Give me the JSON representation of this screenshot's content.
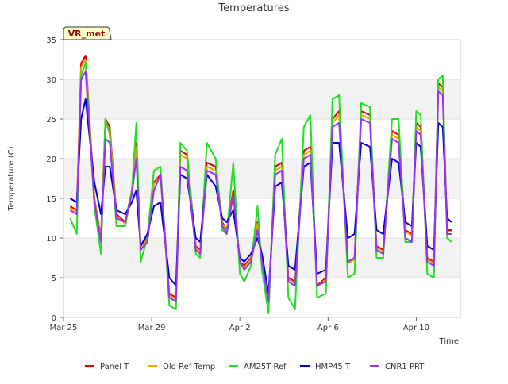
{
  "chart_data": {
    "type": "line",
    "title": "Temperatures",
    "xlabel": "Time",
    "ylabel": "Temperature (C)",
    "badge": "VR_met",
    "xlim": [
      0,
      18
    ],
    "ylim": [
      0,
      35
    ],
    "x_ticks": [
      {
        "value": 0,
        "label": "Mar 25"
      },
      {
        "value": 4,
        "label": "Mar 29"
      },
      {
        "value": 8,
        "label": "Apr 2"
      },
      {
        "value": 12,
        "label": "Apr 6"
      },
      {
        "value": 16,
        "label": "Apr 10"
      }
    ],
    "y_ticks": [
      0,
      5,
      10,
      15,
      20,
      25,
      30,
      35
    ],
    "grid": "horizontal bands",
    "legend": "bottom",
    "series": [
      {
        "name": "Panel T",
        "color": "#dd0000",
        "x": [
          0.3,
          0.6,
          0.8,
          1.0,
          1.4,
          1.7,
          1.9,
          2.1,
          2.4,
          2.8,
          3.1,
          3.3,
          3.5,
          3.8,
          4.1,
          4.4,
          4.8,
          5.1,
          5.3,
          5.6,
          6.0,
          6.2,
          6.5,
          6.9,
          7.2,
          7.4,
          7.7,
          8.0,
          8.2,
          8.5,
          8.8,
          9.0,
          9.3,
          9.6,
          9.9,
          10.2,
          10.5,
          10.9,
          11.2,
          11.5,
          11.9,
          12.2,
          12.5,
          12.9,
          13.2,
          13.5,
          13.9,
          14.2,
          14.5,
          14.9,
          15.2,
          15.5,
          15.8,
          16.0,
          16.2,
          16.5,
          16.8,
          17.0,
          17.2,
          17.4,
          17.6
        ],
        "values": [
          14,
          13.5,
          32,
          33,
          15,
          10,
          25,
          24,
          13,
          12,
          16,
          22,
          9,
          10,
          17,
          18,
          3,
          2.5,
          21,
          20.5,
          9,
          8.5,
          19.5,
          19,
          12,
          11,
          16,
          7,
          6.5,
          7.5,
          12,
          7.5,
          2,
          19,
          19.5,
          5,
          4.5,
          21,
          21.5,
          4,
          5,
          25,
          26,
          7,
          7.5,
          26,
          25.5,
          9,
          8.5,
          23.5,
          23,
          11,
          10.5,
          24.5,
          24,
          7.5,
          7,
          29.5,
          29,
          11,
          11
        ]
      },
      {
        "name": "Old Ref Temp",
        "color": "#f0a000",
        "x": [
          0.3,
          0.6,
          0.8,
          1.0,
          1.4,
          1.7,
          1.9,
          2.1,
          2.4,
          2.8,
          3.1,
          3.3,
          3.5,
          3.8,
          4.1,
          4.4,
          4.8,
          5.1,
          5.3,
          5.6,
          6.0,
          6.2,
          6.5,
          6.9,
          7.2,
          7.4,
          7.7,
          8.0,
          8.2,
          8.5,
          8.8,
          9.0,
          9.3,
          9.6,
          9.9,
          10.2,
          10.5,
          10.9,
          11.2,
          11.5,
          11.9,
          12.2,
          12.5,
          12.9,
          13.2,
          13.5,
          13.9,
          14.2,
          14.5,
          14.9,
          15.2,
          15.5,
          15.8,
          16.0,
          16.2,
          16.5,
          16.8,
          17.0,
          17.2,
          17.4,
          17.6
        ],
        "values": [
          13.8,
          13.3,
          31.5,
          32.5,
          14.8,
          9.8,
          24.5,
          23.5,
          12.8,
          11.8,
          15.8,
          21.5,
          8.8,
          9.8,
          16.8,
          17.8,
          2.8,
          2.3,
          20.5,
          20,
          8.8,
          8.3,
          19,
          18.5,
          11.8,
          10.8,
          15.5,
          6.8,
          6.3,
          7.3,
          11.8,
          7.3,
          1.8,
          18.5,
          19,
          4.8,
          4.3,
          20.5,
          21,
          3.8,
          4.8,
          24.5,
          25.5,
          6.8,
          7.3,
          25.5,
          25,
          8.8,
          8.3,
          23,
          22.5,
          10.8,
          10.3,
          24,
          23.5,
          7.3,
          6.8,
          29,
          28.5,
          10.8,
          10.8
        ]
      },
      {
        "name": "AM25T Ref",
        "color": "#22dd22",
        "x": [
          0.3,
          0.6,
          0.8,
          1.0,
          1.4,
          1.7,
          1.9,
          2.1,
          2.4,
          2.8,
          3.1,
          3.3,
          3.5,
          3.8,
          4.1,
          4.4,
          4.8,
          5.1,
          5.3,
          5.6,
          6.0,
          6.2,
          6.5,
          6.9,
          7.2,
          7.4,
          7.7,
          8.0,
          8.2,
          8.5,
          8.8,
          9.0,
          9.3,
          9.6,
          9.9,
          10.2,
          10.5,
          10.9,
          11.2,
          11.5,
          11.9,
          12.2,
          12.5,
          12.9,
          13.2,
          13.5,
          13.9,
          14.2,
          14.5,
          14.9,
          15.2,
          15.5,
          15.8,
          16.0,
          16.2,
          16.5,
          16.8,
          17.0,
          17.2,
          17.4,
          17.6
        ],
        "values": [
          12.5,
          10.5,
          30.5,
          32,
          14,
          8,
          25,
          23,
          11.5,
          11.5,
          16,
          24.5,
          7,
          10,
          18.5,
          19,
          1.5,
          1,
          22,
          21,
          8,
          7.5,
          22,
          20,
          11,
          10.5,
          19.5,
          5.5,
          4.5,
          6.5,
          14,
          6,
          0.5,
          20.5,
          22.5,
          2.5,
          1,
          24,
          25.5,
          2.5,
          3,
          27.5,
          28,
          5,
          5.5,
          27,
          26.5,
          7.5,
          7.5,
          25,
          25,
          9.5,
          9.5,
          26,
          25.5,
          5.5,
          5,
          30,
          30.5,
          10,
          9.5
        ]
      },
      {
        "name": "HMP45 T",
        "color": "#0000cc",
        "x": [
          0.3,
          0.6,
          0.8,
          1.0,
          1.4,
          1.7,
          1.9,
          2.1,
          2.4,
          2.8,
          3.1,
          3.3,
          3.5,
          3.8,
          4.1,
          4.4,
          4.8,
          5.1,
          5.3,
          5.6,
          6.0,
          6.2,
          6.5,
          6.9,
          7.2,
          7.4,
          7.7,
          8.0,
          8.2,
          8.5,
          8.8,
          9.0,
          9.3,
          9.6,
          9.9,
          10.2,
          10.5,
          10.9,
          11.2,
          11.5,
          11.9,
          12.2,
          12.5,
          12.9,
          13.2,
          13.5,
          13.9,
          14.2,
          14.5,
          14.9,
          15.2,
          15.5,
          15.8,
          16.0,
          16.2,
          16.5,
          16.8,
          17.0,
          17.2,
          17.4,
          17.6
        ],
        "values": [
          15,
          14.5,
          25,
          27.5,
          17,
          13,
          19,
          19,
          13.5,
          13,
          14.5,
          16,
          9,
          10.5,
          14,
          14.5,
          5,
          4,
          18,
          17.5,
          10,
          9.5,
          18,
          16.5,
          12.5,
          12,
          13.5,
          7.5,
          7,
          8,
          10,
          8,
          3,
          16.5,
          17,
          6.5,
          6,
          19,
          19.5,
          5.5,
          6,
          22,
          22,
          10,
          10.5,
          22,
          21.5,
          11,
          10.5,
          20,
          19.5,
          12,
          11.5,
          22,
          21.5,
          9,
          8.5,
          24.5,
          24,
          12.5,
          12
        ]
      },
      {
        "name": "CNR1 PRT",
        "color": "#9933ee",
        "x": [
          0.3,
          0.6,
          0.8,
          1.0,
          1.4,
          1.7,
          1.9,
          2.1,
          2.4,
          2.8,
          3.1,
          3.3,
          3.5,
          3.8,
          4.1,
          4.4,
          4.8,
          5.1,
          5.3,
          5.6,
          6.0,
          6.2,
          6.5,
          6.9,
          7.2,
          7.4,
          7.7,
          8.0,
          8.2,
          8.5,
          8.8,
          9.0,
          9.3,
          9.6,
          9.9,
          10.2,
          10.5,
          10.9,
          11.2,
          11.5,
          11.9,
          12.2,
          12.5,
          12.9,
          13.2,
          13.5,
          13.9,
          14.2,
          14.5,
          14.9,
          15.2,
          15.5,
          15.8,
          16.0,
          16.2,
          16.5,
          16.8,
          17.0,
          17.2,
          17.4,
          17.6
        ],
        "values": [
          13.5,
          13,
          30,
          31,
          14.5,
          9.5,
          22.5,
          22,
          12.5,
          12,
          15.5,
          20,
          8.5,
          9.5,
          16,
          18,
          2.5,
          2,
          19,
          18.5,
          8.5,
          8,
          18.5,
          18,
          11.5,
          10.5,
          15.5,
          7,
          6,
          7,
          11,
          7,
          2,
          18,
          18.5,
          4.5,
          4,
          20,
          20.5,
          4,
          4.5,
          24,
          24.5,
          7,
          7.5,
          25,
          24.5,
          8.5,
          8,
          22.5,
          22,
          10,
          9.5,
          23.5,
          23,
          7,
          6.5,
          28.5,
          28,
          10.5,
          10.5
        ]
      }
    ]
  }
}
